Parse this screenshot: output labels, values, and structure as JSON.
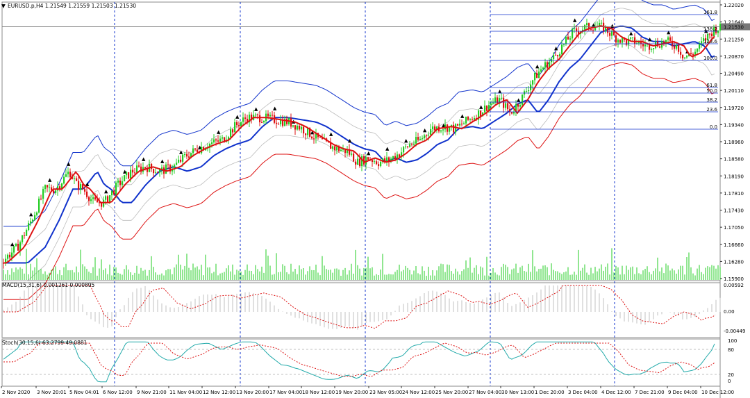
{
  "main_header": {
    "collapse_icon": "triangle-down-icon",
    "text": "EURUSD.p,H4  1.21549 1.21559 1.21503 1.21530"
  },
  "macd_header": "MACD(15,31,6) 0.001261 0.000895",
  "stoch_header": "Stoch(30,15,6) 63.2799 49.0881",
  "colors": {
    "bull": "#22cc22",
    "bear": "#dd1111",
    "ma_fast": "#dd1111",
    "ma_slow": "#1133cc",
    "band_upper": "#1133cc",
    "band_lower": "#dd1111",
    "band_inner": "#bbbbbb",
    "volume": "#22cc22",
    "macd_hist": "#c0c0c0",
    "macd_signal": "#dd1111",
    "stoch_main": "#22aaaa",
    "stoch_signal": "#dd1111",
    "fib": "#1133cc",
    "separator": "#1133cc"
  },
  "price_axis": [
    "1.22020",
    "1.21640",
    "1.21250",
    "1.20870",
    "1.20490",
    "1.20110",
    "1.19720",
    "1.19340",
    "1.18960",
    "1.18580",
    "1.18190",
    "1.17810",
    "1.17430",
    "1.17050",
    "1.16660",
    "1.16280",
    "1.15900"
  ],
  "current_price": "1.21530",
  "fib_levels": [
    "161.8",
    "138.2",
    "123.6",
    "100.0",
    "61.8",
    "50.0",
    "38.2",
    "23.6",
    "0.0"
  ],
  "macd_axis": [
    "0.00592",
    "0.00",
    "-0.00449"
  ],
  "stoch_axis": [
    "100",
    "80",
    "20",
    "0"
  ],
  "time_axis": [
    "2 Nov 2020",
    "3 Nov 20:01",
    "5 Nov 04:01",
    "6 Nov 12:00",
    "9 Nov 21:00",
    "11 Nov 04:00",
    "12 Nov 12:00",
    "13 Nov 20:00",
    "17 Nov 04:00",
    "18 Nov 12:00",
    "19 Nov 20:00",
    "23 Nov 05:00",
    "24 Nov 12:00",
    "25 Nov 20:00",
    "27 Nov 04:00",
    "30 Nov 13:00",
    "1 Dec 20:00",
    "3 Dec 04:00",
    "4 Dec 12:00",
    "7 Dec 21:00",
    "9 Dec 04:00",
    "10 Dec 12:00"
  ]
}
